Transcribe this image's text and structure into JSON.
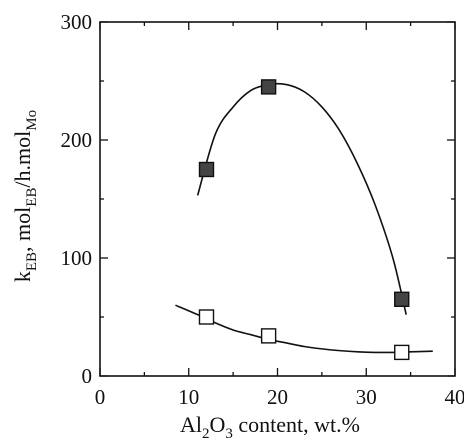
{
  "chart_data": {
    "type": "scatter",
    "xlabel": {
      "main": "Al",
      "sub1": "2",
      "mid": "O",
      "sub2": "3",
      "rest": " content, wt.%"
    },
    "ylabel": {
      "k": "k",
      "k_sub": "EB",
      "mid": ", mol",
      "mol_sub": "EB",
      "rest": "/h.mol",
      "rest_sub": "Mo"
    },
    "xlim": [
      0,
      40
    ],
    "ylim": [
      0,
      300
    ],
    "x_ticks": [
      0,
      10,
      20,
      30,
      40
    ],
    "y_ticks": [
      0,
      100,
      200,
      300
    ],
    "x_tick_labels": [
      "0",
      "10",
      "20",
      "30",
      "40"
    ],
    "y_tick_labels": [
      "0",
      "100",
      "200",
      "300"
    ],
    "grid": false,
    "legend": "none",
    "series": [
      {
        "marker": "filled-square",
        "color": "#444444",
        "points": [
          {
            "x": 12,
            "y": 175
          },
          {
            "x": 19,
            "y": 245
          },
          {
            "x": 34,
            "y": 65
          }
        ],
        "fit_curve": [
          [
            11,
            153
          ],
          [
            13,
            205
          ],
          [
            15,
            228
          ],
          [
            17,
            242
          ],
          [
            19,
            247
          ],
          [
            21,
            247
          ],
          [
            23,
            241
          ],
          [
            25,
            228
          ],
          [
            27,
            208
          ],
          [
            29,
            180
          ],
          [
            31,
            145
          ],
          [
            33,
            100
          ],
          [
            34.5,
            52
          ]
        ]
      },
      {
        "marker": "open-square",
        "color": "#444444",
        "points": [
          {
            "x": 12,
            "y": 50
          },
          {
            "x": 19,
            "y": 34
          },
          {
            "x": 34,
            "y": 20
          }
        ],
        "fit_curve": [
          [
            8.5,
            60
          ],
          [
            11,
            52
          ],
          [
            13,
            45
          ],
          [
            15,
            39
          ],
          [
            17,
            35
          ],
          [
            19,
            31
          ],
          [
            21,
            28
          ],
          [
            23,
            25
          ],
          [
            25,
            23
          ],
          [
            27,
            21.5
          ],
          [
            29,
            20.5
          ],
          [
            31,
            20
          ],
          [
            33,
            20
          ],
          [
            35,
            20.5
          ],
          [
            37.5,
            21
          ]
        ]
      }
    ]
  }
}
